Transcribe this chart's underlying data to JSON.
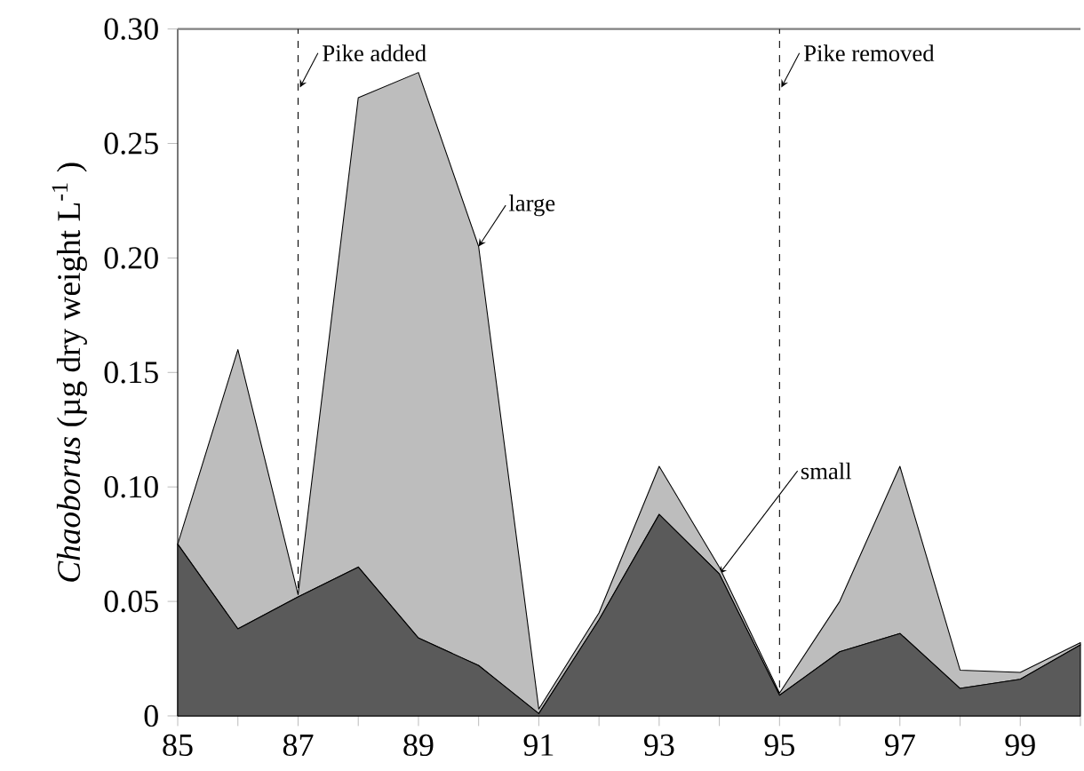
{
  "chart_data": {
    "type": "area",
    "stacked": true,
    "ylabel": "*Chaoborus*  (µg dry weight L$^{-1}$ )",
    "x": [
      85,
      86,
      87,
      88,
      89,
      90,
      91,
      92,
      93,
      94,
      95,
      96,
      97,
      98,
      99,
      100
    ],
    "series": [
      {
        "name": "small",
        "color": "#5a5a5a",
        "values": [
          0.075,
          0.038,
          0.052,
          0.065,
          0.034,
          0.022,
          0.001,
          0.042,
          0.088,
          0.062,
          0.009,
          0.028,
          0.036,
          0.012,
          0.016,
          0.031
        ]
      },
      {
        "name": "large",
        "color": "#bdbdbd",
        "values": [
          0,
          0.122,
          0.001,
          0.205,
          0.247,
          0.183,
          0.002,
          0.003,
          0.021,
          0.003,
          0.001,
          0.022,
          0.073,
          0.008,
          0.003,
          0.001
        ]
      }
    ],
    "xlim": [
      85,
      100
    ],
    "xticks": [
      85,
      {
        "value": 86,
        "label": null
      },
      87,
      {
        "value": 88,
        "label": null
      },
      89,
      {
        "value": 90,
        "label": null
      },
      91,
      {
        "value": 92,
        "label": null
      },
      93,
      {
        "value": 94,
        "label": null
      },
      95,
      {
        "value": 96,
        "label": null
      },
      97,
      {
        "value": 98,
        "label": null
      },
      99,
      {
        "value": 100,
        "label": null
      }
    ],
    "ylim": [
      0,
      0.3
    ],
    "yticks": [
      0,
      {
        "value": 0.05,
        "label": "0.05"
      },
      {
        "value": 0.1,
        "label": "0.10"
      },
      {
        "value": 0.15,
        "label": "0.15"
      },
      {
        "value": 0.2,
        "label": "0.20"
      },
      {
        "value": 0.25,
        "label": "0.25"
      },
      {
        "value": 0.3,
        "label": "0.30"
      }
    ],
    "ref_lines": [
      {
        "axis": "x",
        "value": 87,
        "label": "Pike added",
        "line_style": "dashed"
      },
      {
        "axis": "x",
        "value": 95,
        "label": "Pike removed",
        "line_style": "dashed"
      }
    ],
    "grid": false
  }
}
